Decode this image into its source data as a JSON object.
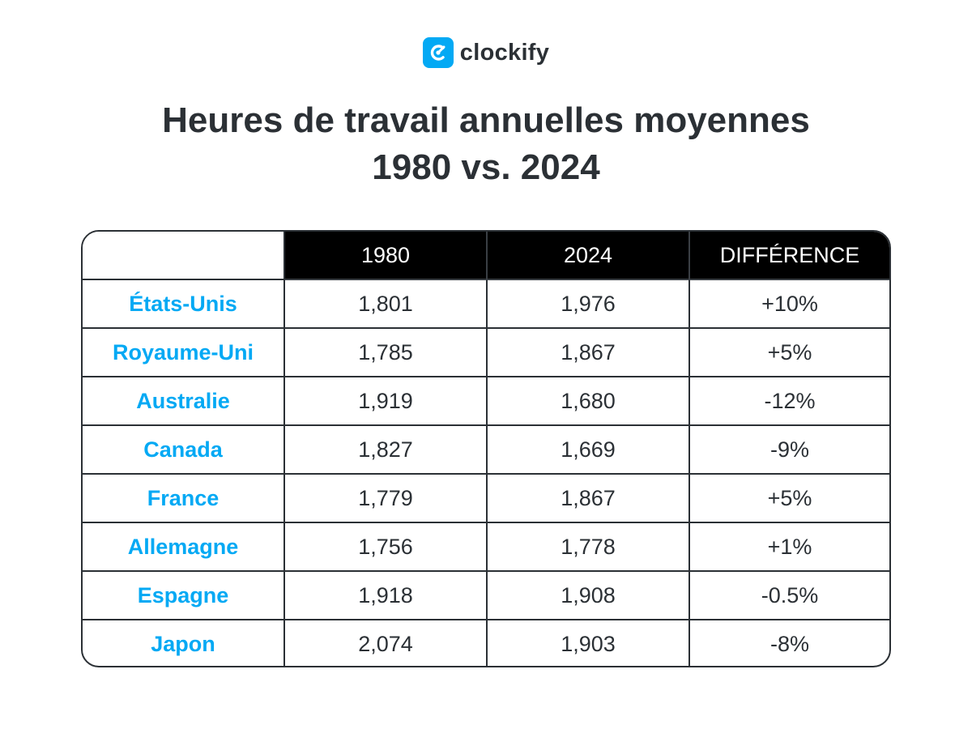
{
  "brand": {
    "name": "clockify",
    "accent_color": "#03a9f4",
    "logo_icon": "clockify-c-icon"
  },
  "title": {
    "line1": "Heures de travail annuelles moyennes",
    "line2": "1980 vs. 2024"
  },
  "chart_data": {
    "type": "table",
    "columns": [
      "",
      "1980",
      "2024",
      "DIFFÉRENCE"
    ],
    "rows": [
      {
        "country": "États-Unis",
        "y1980": "1,801",
        "y2024": "1,976",
        "diff": "+10%"
      },
      {
        "country": "Royaume-Uni",
        "y1980": "1,785",
        "y2024": "1,867",
        "diff": "+5%"
      },
      {
        "country": "Australie",
        "y1980": "1,919",
        "y2024": "1,680",
        "diff": "-12%"
      },
      {
        "country": "Canada",
        "y1980": "1,827",
        "y2024": "1,669",
        "diff": "-9%"
      },
      {
        "country": "France",
        "y1980": "1,779",
        "y2024": "1,867",
        "diff": "+5%"
      },
      {
        "country": "Allemagne",
        "y1980": "1,756",
        "y2024": "1,778",
        "diff": "+1%"
      },
      {
        "country": "Espagne",
        "y1980": "1,918",
        "y2024": "1,908",
        "diff": "-0.5%"
      },
      {
        "country": "Japon",
        "y1980": "2,074",
        "y2024": "1,903",
        "diff": "-8%"
      }
    ],
    "header_background": "#000000",
    "country_color": "#03a9f4"
  }
}
